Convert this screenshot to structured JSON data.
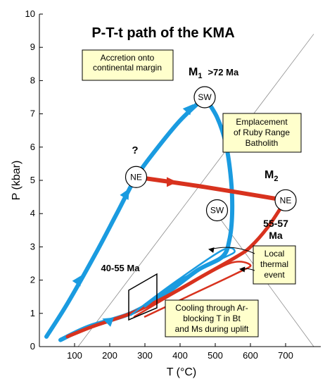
{
  "chart_data": {
    "type": "line",
    "title": "P-T-t path of the KMA",
    "xlabel": "T (°C)",
    "ylabel": "P (kbar)",
    "xlim": [
      0,
      800
    ],
    "ylim": [
      0,
      10
    ],
    "xticks": [
      "100",
      "200",
      "300",
      "400",
      "500",
      "600",
      "700"
    ],
    "yticks": [
      "0",
      "1",
      "2",
      "3",
      "4",
      "5",
      "6",
      "7",
      "8",
      "9",
      "10"
    ],
    "grid": false,
    "colors": {
      "blue": "#1a9be0",
      "red": "#d8321e",
      "box_fill": "#ffffcc"
    },
    "series": [
      {
        "color": "blue",
        "points": [
          [
            20,
            0.3
          ],
          [
            80,
            1.3
          ],
          [
            160,
            2.8
          ],
          [
            220,
            4.0
          ],
          [
            275,
            5.1
          ],
          [
            330,
            5.9
          ],
          [
            400,
            6.8
          ],
          [
            470,
            7.5
          ]
        ]
      },
      {
        "color": "blue",
        "points": [
          [
            470,
            7.5
          ],
          [
            505,
            6.9
          ],
          [
            530,
            6.1
          ],
          [
            545,
            5.0
          ],
          [
            548,
            4.0
          ],
          [
            540,
            3.2
          ],
          [
            520,
            2.7
          ],
          [
            450,
            2.3
          ],
          [
            360,
            1.6
          ],
          [
            260,
            1.0
          ],
          [
            140,
            0.6
          ],
          [
            60,
            0.2
          ]
        ]
      },
      {
        "color": "red",
        "points": [
          [
            275,
            5.1
          ],
          [
            470,
            4.8
          ],
          [
            700,
            4.4
          ]
        ]
      },
      {
        "color": "red",
        "points": [
          [
            700,
            4.4
          ],
          [
            650,
            3.6
          ],
          [
            600,
            3.0
          ],
          [
            560,
            2.7
          ],
          [
            460,
            2.1
          ],
          [
            360,
            1.5
          ],
          [
            260,
            1.0
          ],
          [
            150,
            0.6
          ],
          [
            80,
            0.3
          ]
        ]
      },
      {
        "color": "red",
        "points": [
          [
            270,
            0.9
          ],
          [
            400,
            1.7
          ],
          [
            540,
            2.5
          ],
          [
            600,
            2.45
          ],
          [
            560,
            2.2
          ],
          [
            420,
            1.5
          ],
          [
            300,
            0.9
          ]
        ]
      },
      {
        "color": "blue",
        "points": [
          [
            260,
            0.95
          ],
          [
            380,
            1.9
          ],
          [
            520,
            2.9
          ],
          [
            555,
            2.85
          ],
          [
            510,
            2.6
          ],
          [
            400,
            2.0
          ],
          [
            300,
            1.2
          ]
        ]
      }
    ],
    "stations": [
      {
        "label": "SW",
        "x": 470,
        "y": 7.5
      },
      {
        "label": "NE",
        "x": 275,
        "y": 5.1
      },
      {
        "label": "SW",
        "x": 505,
        "y": 4.1
      },
      {
        "label": "NE",
        "x": 700,
        "y": 4.4
      }
    ],
    "metamorphic_events": [
      {
        "label": "M",
        "subscript": "1",
        "age": ">72 Ma"
      },
      {
        "label": "M",
        "subscript": "2"
      }
    ],
    "annotations": [
      {
        "key": "accretion",
        "lines": [
          "Accretion onto",
          "continental margin"
        ],
        "boxed": true
      },
      {
        "key": "emplacement",
        "lines": [
          "Emplacement",
          "of Ruby Range",
          "Batholith"
        ],
        "boxed": true
      },
      {
        "key": "local",
        "lines": [
          "Local",
          "thermal",
          "event"
        ],
        "boxed": true
      },
      {
        "key": "cooling",
        "lines": [
          "Cooling through Ar-",
          "blocking T in Bt",
          "and Ms during uplift"
        ],
        "boxed": true
      },
      {
        "key": "question",
        "lines": [
          "?"
        ],
        "boxed": false
      },
      {
        "key": "age_m2",
        "lines": [
          "55-57",
          "Ma"
        ],
        "boxed": false
      },
      {
        "key": "age_cool",
        "lines": [
          "40-55 Ma"
        ],
        "boxed": false
      }
    ]
  }
}
